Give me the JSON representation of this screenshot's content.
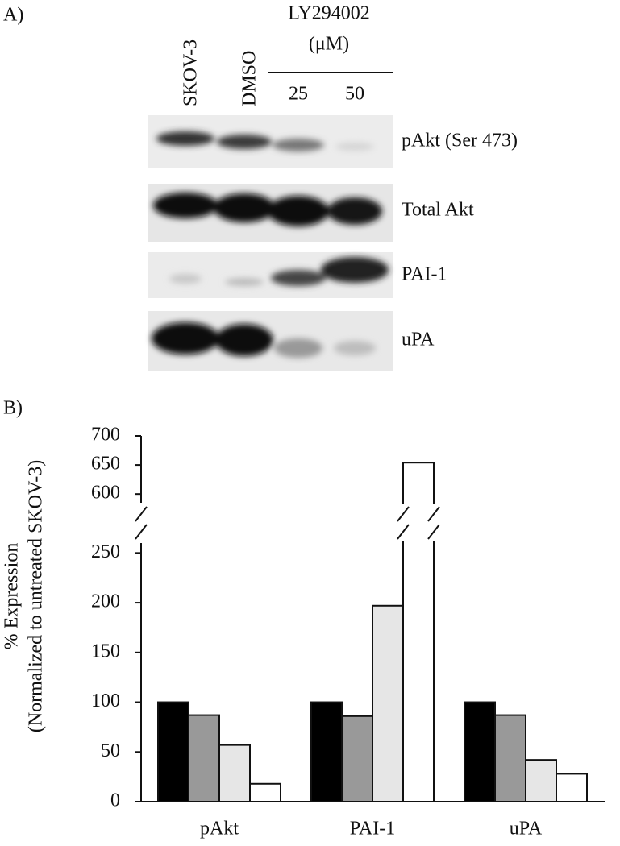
{
  "panel_a": {
    "label": "A)",
    "treatment": "LY294002",
    "unit": "(μM)",
    "rows": [
      "pAkt (Ser 473)",
      "Total Akt",
      "PAI-1",
      "uPA"
    ]
  },
  "chart_data": {
    "type": "bar",
    "panel_label": "B)",
    "ylabel": [
      "% Expression",
      "(Normalized to untreated SKOV-3)"
    ],
    "categories": [
      "pAkt",
      "PAI-1",
      "uPA"
    ],
    "series": [
      {
        "name": "SKOV-3",
        "color": "#000000",
        "values": [
          100,
          100,
          100
        ]
      },
      {
        "name": "DMSO",
        "color": "#999999",
        "values": [
          87,
          86,
          87
        ]
      },
      {
        "name": "25",
        "color": "#e6e6e6",
        "values": [
          57,
          197,
          42
        ]
      },
      {
        "name": "50",
        "color": "#ffffff",
        "values": [
          18,
          654,
          28
        ]
      }
    ],
    "ylim": [
      0,
      700
    ],
    "y_break": [
      260,
      585
    ],
    "yticks": [
      0,
      50,
      100,
      150,
      200,
      250,
      600,
      650,
      700
    ]
  }
}
